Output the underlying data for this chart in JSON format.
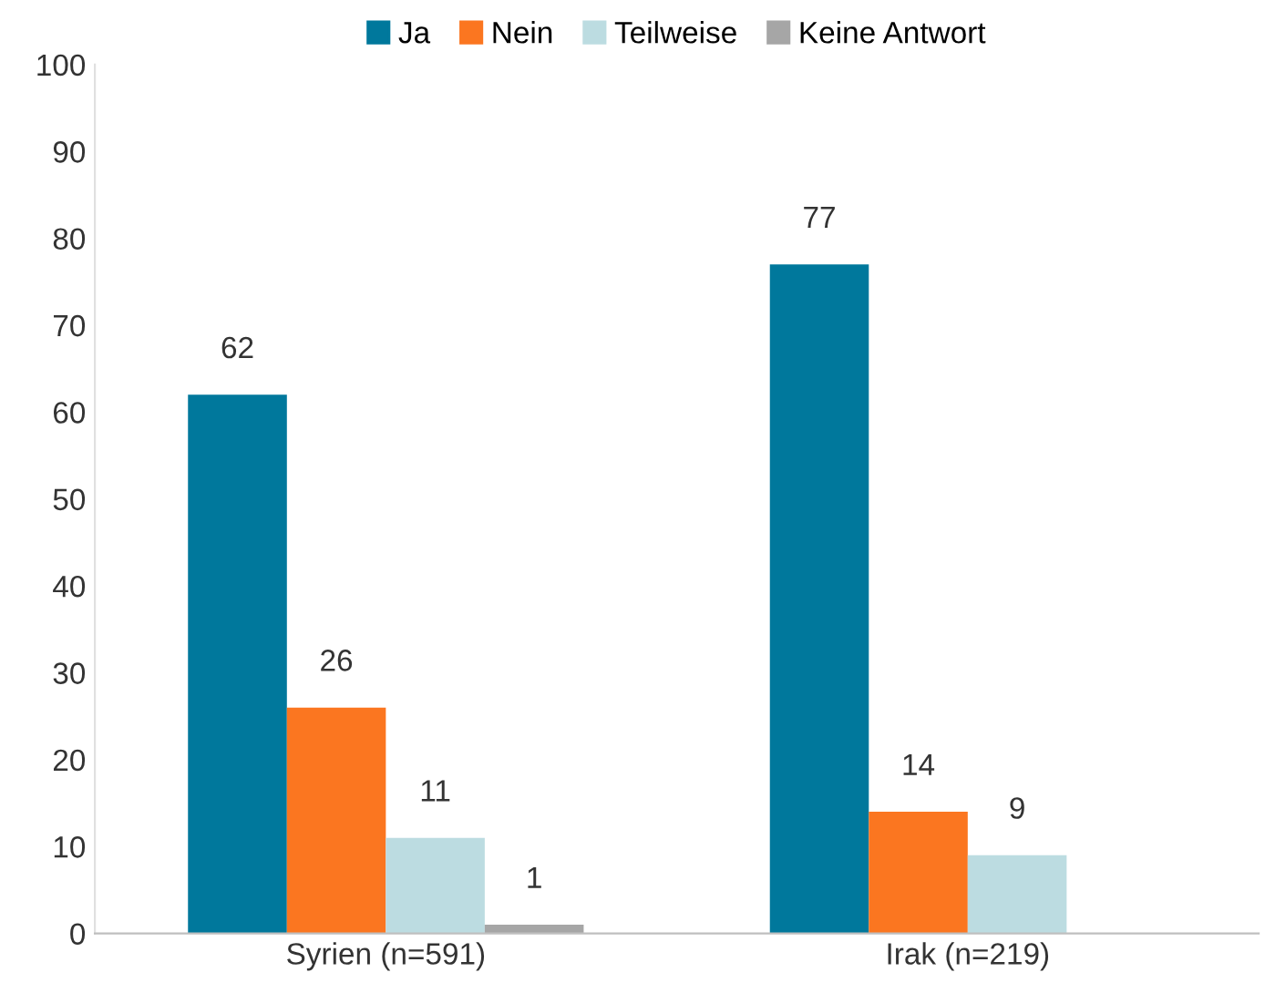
{
  "chart_data": {
    "type": "bar",
    "categories": [
      "Syrien (n=591)",
      "Irak (n=219)"
    ],
    "series": [
      {
        "name": "Ja",
        "color": "#00789c",
        "values": [
          62,
          77
        ]
      },
      {
        "name": "Nein",
        "color": "#fb7620",
        "values": [
          26,
          14
        ]
      },
      {
        "name": "Teilweise",
        "color": "#bcdce1",
        "values": [
          11,
          9
        ]
      },
      {
        "name": "Keine Antwort",
        "color": "#a6a6a6",
        "values": [
          1,
          null
        ]
      }
    ],
    "ylim": [
      0,
      100
    ],
    "yticks": [
      0,
      10,
      20,
      30,
      40,
      50,
      60,
      70,
      80,
      90,
      100
    ],
    "data_labels": true,
    "grid": false,
    "legend": "top"
  }
}
